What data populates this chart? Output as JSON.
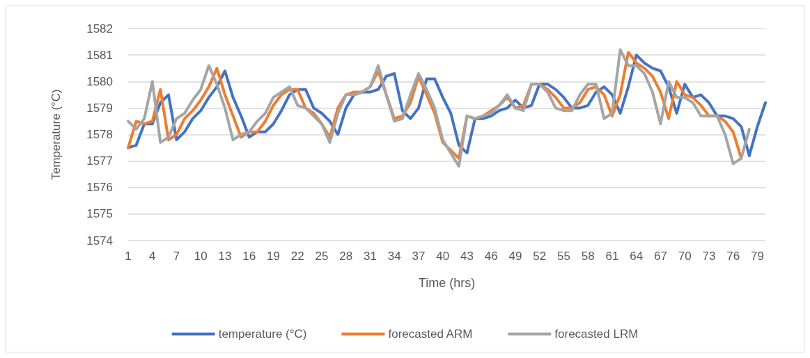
{
  "chart_data": {
    "type": "line",
    "xlabel": "Time (hrs)",
    "ylabel": "Temperature (°C)",
    "categories": [
      "1",
      null,
      null,
      "4",
      null,
      null,
      "7",
      null,
      null,
      "10",
      null,
      null,
      "13",
      null,
      null,
      "16",
      null,
      null,
      "19",
      null,
      null,
      "22",
      null,
      null,
      "25",
      null,
      null,
      "28",
      null,
      null,
      "31",
      null,
      null,
      "34",
      null,
      null,
      "37",
      null,
      null,
      "40",
      null,
      null,
      "43",
      null,
      null,
      "46",
      null,
      null,
      "49",
      null,
      null,
      "52",
      null,
      null,
      "55",
      null,
      null,
      "58",
      null,
      null,
      "61",
      null,
      null,
      "64",
      null,
      null,
      "67",
      null,
      null,
      "70",
      null,
      null,
      "73",
      null,
      null,
      "76",
      null,
      null,
      "79",
      null
    ],
    "series": [
      {
        "name": "temperature (°C)",
        "color": "#4472c4",
        "values": [
          1577.5,
          1577.6,
          1578.4,
          1578.4,
          1579.2,
          1579.5,
          1577.8,
          1578.1,
          1578.6,
          1578.9,
          1579.4,
          1579.8,
          1580.4,
          1579.4,
          1578.7,
          1577.9,
          1578.1,
          1578.1,
          1578.4,
          1578.9,
          1579.5,
          1579.7,
          1579.7,
          1579.0,
          1578.8,
          1578.5,
          1578.0,
          1579.0,
          1579.5,
          1579.6,
          1579.6,
          1579.7,
          1580.2,
          1580.3,
          1578.9,
          1578.6,
          1579.0,
          1580.1,
          1580.1,
          1579.4,
          1578.8,
          1577.6,
          1577.3,
          1578.6,
          1578.6,
          1578.7,
          1578.9,
          1579.0,
          1579.3,
          1579.0,
          1579.1,
          1579.9,
          1579.9,
          1579.7,
          1579.4,
          1579.0,
          1579.0,
          1579.1,
          1579.6,
          1579.8,
          1579.5,
          1578.8,
          1579.8,
          1581.0,
          1580.7,
          1580.5,
          1580.4,
          1579.8,
          1578.8,
          1579.9,
          1579.4,
          1579.5,
          1579.2,
          1578.7,
          1578.7,
          1578.6,
          1578.3,
          1577.2,
          1578.3,
          1579.2
        ]
      },
      {
        "name": "forecasted ARM",
        "color": "#ed7d31",
        "values": [
          1577.5,
          1578.5,
          1578.4,
          1578.5,
          1579.7,
          1577.8,
          1578.0,
          1578.6,
          1578.9,
          1579.3,
          1579.8,
          1580.5,
          1579.5,
          1578.7,
          1577.9,
          1578.1,
          1578.1,
          1578.5,
          1579.1,
          1579.5,
          1579.7,
          1579.7,
          1579.0,
          1578.8,
          1578.4,
          1577.9,
          1579.0,
          1579.5,
          1579.6,
          1579.6,
          1579.8,
          1580.4,
          1579.5,
          1578.6,
          1578.7,
          1579.2,
          1580.2,
          1579.5,
          1578.8,
          1577.7,
          1577.4,
          1577.1,
          1578.7,
          1578.6,
          1578.7,
          1578.9,
          1579.1,
          1579.4,
          1579.0,
          1579.1,
          1579.9,
          1579.9,
          1579.7,
          1579.4,
          1579.0,
          1579.0,
          1579.2,
          1579.7,
          1579.8,
          1579.5,
          1578.7,
          1579.5,
          1581.1,
          1580.7,
          1580.5,
          1580.2,
          1579.6,
          1578.6,
          1580.0,
          1579.5,
          1579.4,
          1579.1,
          1578.7,
          1578.7,
          1578.5,
          1578.1,
          1577.1,
          null,
          null,
          null
        ]
      },
      {
        "name": "forecasted LRM",
        "color": "#a5a5a5",
        "values": [
          1578.5,
          1578.2,
          1578.6,
          1580.0,
          1577.7,
          1577.9,
          1578.6,
          1578.8,
          1579.3,
          1579.7,
          1580.6,
          1579.9,
          1579.0,
          1577.8,
          1578.0,
          1578.1,
          1578.5,
          1578.8,
          1579.4,
          1579.6,
          1579.8,
          1579.1,
          1579.0,
          1578.7,
          1578.4,
          1577.7,
          1578.8,
          1579.5,
          1579.5,
          1579.6,
          1579.8,
          1580.6,
          1579.5,
          1578.5,
          1578.6,
          1579.5,
          1580.3,
          1579.7,
          1579.0,
          1577.8,
          1577.3,
          1576.8,
          1578.7,
          1578.6,
          1578.7,
          1578.8,
          1579.1,
          1579.5,
          1579.0,
          1578.9,
          1579.9,
          1579.9,
          1579.6,
          1579.0,
          1578.9,
          1578.9,
          1579.5,
          1579.9,
          1579.9,
          1578.6,
          1578.8,
          1581.2,
          1580.6,
          1580.6,
          1580.3,
          1579.6,
          1578.4,
          1580.0,
          1579.4,
          1579.4,
          1579.2,
          1578.7,
          1578.7,
          1578.7,
          1578.0,
          1576.9,
          1577.1,
          1578.2,
          null,
          null
        ]
      }
    ],
    "ylim": [
      1574,
      1582
    ],
    "yticks": [
      1574,
      1575,
      1576,
      1577,
      1578,
      1579,
      1580,
      1581,
      1582
    ],
    "grid": "y",
    "legend": "bottom",
    "marker": "none",
    "line_style": "solid"
  }
}
